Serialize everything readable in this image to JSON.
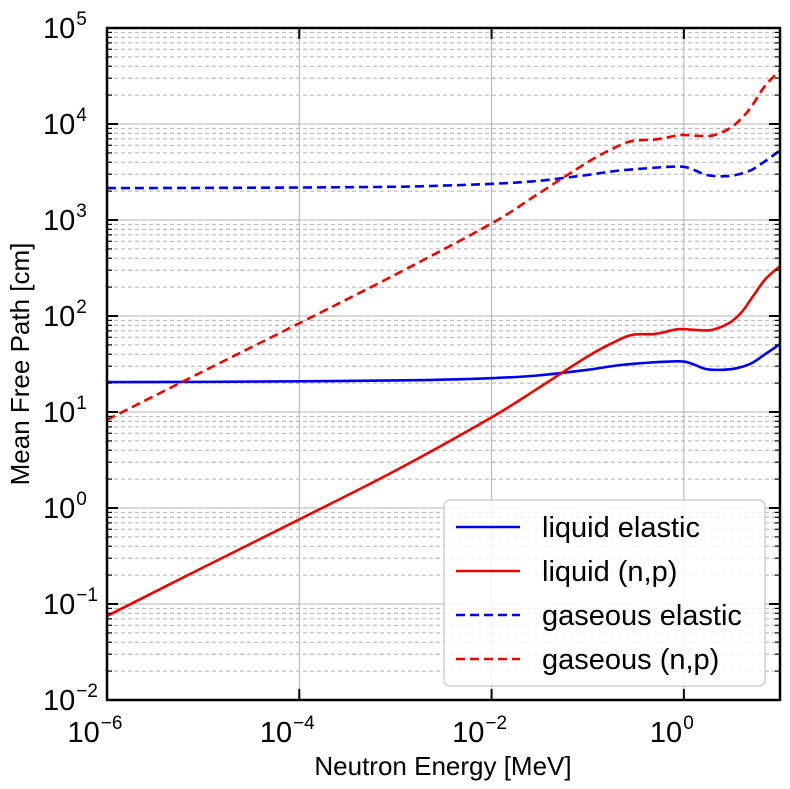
{
  "chart_data": {
    "type": "line",
    "xlabel": "Neutron Energy [MeV]",
    "ylabel": "Mean Free Path [cm]",
    "xscale": "log",
    "yscale": "log",
    "xlim": [
      1e-06,
      10
    ],
    "ylim": [
      0.01,
      100000
    ],
    "grid": true,
    "legend_position": "lower-right",
    "x_ticks": [
      {
        "value": 1e-06,
        "base": "10",
        "exp": "−6"
      },
      {
        "value": 0.0001,
        "base": "10",
        "exp": "−4"
      },
      {
        "value": 0.01,
        "base": "10",
        "exp": "−2"
      },
      {
        "value": 1,
        "base": "10",
        "exp": "0"
      }
    ],
    "y_ticks": [
      {
        "value": 0.01,
        "base": "10",
        "exp": "−2"
      },
      {
        "value": 0.1,
        "base": "10",
        "exp": "−1"
      },
      {
        "value": 1,
        "base": "10",
        "exp": "0"
      },
      {
        "value": 10,
        "base": "10",
        "exp": "1"
      },
      {
        "value": 100,
        "base": "10",
        "exp": "2"
      },
      {
        "value": 1000,
        "base": "10",
        "exp": "3"
      },
      {
        "value": 10000,
        "base": "10",
        "exp": "4"
      },
      {
        "value": 100000,
        "base": "10",
        "exp": "5"
      }
    ],
    "series": [
      {
        "name": "liquid elastic",
        "color": "#0000ee",
        "dash": "solid",
        "points": [
          [
            1e-06,
            20.5
          ],
          [
            1e-05,
            20.6
          ],
          [
            0.0001,
            20.9
          ],
          [
            0.001,
            21.3
          ],
          [
            0.003,
            21.7
          ],
          [
            0.01,
            22.5
          ],
          [
            0.03,
            24
          ],
          [
            0.1,
            27.5
          ],
          [
            0.2,
            30.5
          ],
          [
            0.4,
            32.5
          ],
          [
            0.7,
            33.5
          ],
          [
            1.0,
            33.5
          ],
          [
            1.3,
            31
          ],
          [
            1.7,
            28
          ],
          [
            2.5,
            27.5
          ],
          [
            3.5,
            28.5
          ],
          [
            5.0,
            32
          ],
          [
            7.0,
            40
          ],
          [
            10.0,
            51
          ]
        ]
      },
      {
        "name": "liquid (n,p)",
        "color": "#ee0000",
        "dash": "solid",
        "points": [
          [
            1e-06,
            0.075
          ],
          [
            1e-05,
            0.24
          ],
          [
            0.0001,
            0.76
          ],
          [
            0.001,
            2.45
          ],
          [
            0.01,
            8.8
          ],
          [
            0.03,
            17.5
          ],
          [
            0.1,
            38
          ],
          [
            0.2,
            55
          ],
          [
            0.3,
            64
          ],
          [
            0.5,
            65
          ],
          [
            0.8,
            72
          ],
          [
            1.0,
            73
          ],
          [
            1.5,
            71
          ],
          [
            2.0,
            72
          ],
          [
            3.0,
            85
          ],
          [
            4.0,
            110
          ],
          [
            5.0,
            150
          ],
          [
            7.0,
            240
          ],
          [
            10.0,
            330
          ]
        ]
      },
      {
        "name": "gaseous elastic",
        "color": "#0000ee",
        "dash": "dashed",
        "points": [
          [
            1e-06,
            2150
          ],
          [
            1e-05,
            2160
          ],
          [
            0.0001,
            2180
          ],
          [
            0.001,
            2220
          ],
          [
            0.003,
            2280
          ],
          [
            0.01,
            2380
          ],
          [
            0.03,
            2550
          ],
          [
            0.1,
            2950
          ],
          [
            0.2,
            3250
          ],
          [
            0.4,
            3450
          ],
          [
            0.7,
            3580
          ],
          [
            1.0,
            3580
          ],
          [
            1.3,
            3300
          ],
          [
            1.7,
            2950
          ],
          [
            2.5,
            2850
          ],
          [
            3.5,
            2950
          ],
          [
            5.0,
            3300
          ],
          [
            7.0,
            4100
          ],
          [
            10.0,
            5300
          ]
        ]
      },
      {
        "name": "gaseous (n,p)",
        "color": "#ee0000",
        "dash": "dashed",
        "points": [
          [
            1e-06,
            8.3
          ],
          [
            1e-05,
            26.5
          ],
          [
            0.0001,
            84
          ],
          [
            0.001,
            270
          ],
          [
            0.01,
            920
          ],
          [
            0.03,
            1850
          ],
          [
            0.1,
            4000
          ],
          [
            0.2,
            5800
          ],
          [
            0.3,
            6700
          ],
          [
            0.5,
            6900
          ],
          [
            0.8,
            7500
          ],
          [
            1.0,
            7700
          ],
          [
            1.5,
            7500
          ],
          [
            2.0,
            7600
          ],
          [
            3.0,
            9000
          ],
          [
            4.0,
            11500
          ],
          [
            5.0,
            15000
          ],
          [
            7.0,
            25000
          ],
          [
            10.0,
            36000
          ]
        ]
      }
    ]
  }
}
